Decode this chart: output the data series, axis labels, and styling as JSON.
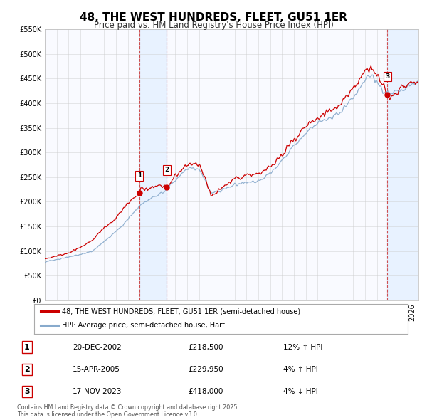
{
  "title": "48, THE WEST HUNDREDS, FLEET, GU51 1ER",
  "subtitle": "Price paid vs. HM Land Registry's House Price Index (HPI)",
  "title_fontsize": 11,
  "subtitle_fontsize": 8.5,
  "background_color": "#ffffff",
  "plot_bg_color": "#ffffff",
  "grid_color": "#cccccc",
  "ylim": [
    0,
    550000
  ],
  "yticks": [
    0,
    50000,
    100000,
    150000,
    200000,
    250000,
    300000,
    350000,
    400000,
    450000,
    500000,
    550000
  ],
  "ytick_labels": [
    "£0",
    "£50K",
    "£100K",
    "£150K",
    "£200K",
    "£250K",
    "£300K",
    "£350K",
    "£400K",
    "£450K",
    "£500K",
    "£550K"
  ],
  "xlim_start": 1995.0,
  "xlim_end": 2026.5,
  "red_line_color": "#cc0000",
  "blue_line_color": "#88aacc",
  "sale_marker_color": "#cc0000",
  "vline_color": "#cc3333",
  "vshade_color": "#ddeeff",
  "legend_label_red": "48, THE WEST HUNDREDS, FLEET, GU51 1ER (semi-detached house)",
  "legend_label_blue": "HPI: Average price, semi-detached house, Hart",
  "sales": [
    {
      "num": 1,
      "date_x": 2002.97,
      "price": 218500,
      "label": "20-DEC-2002",
      "pct": "12%",
      "dir": "↑"
    },
    {
      "num": 2,
      "date_x": 2005.29,
      "price": 229950,
      "label": "15-APR-2005",
      "pct": "4%",
      "dir": "↑"
    },
    {
      "num": 3,
      "date_x": 2023.88,
      "price": 418000,
      "label": "17-NOV-2023",
      "pct": "4%",
      "dir": "↓"
    }
  ],
  "vshade_ranges": [
    [
      2002.97,
      2005.29
    ],
    [
      2023.88,
      2026.5
    ]
  ],
  "footer_text": "Contains HM Land Registry data © Crown copyright and database right 2025.\nThis data is licensed under the Open Government Licence v3.0.",
  "table_rows": [
    {
      "num": 1,
      "date": "20-DEC-2002",
      "price": "£218,500",
      "pct": "12% ↑ HPI"
    },
    {
      "num": 2,
      "date": "15-APR-2005",
      "price": "£229,950",
      "pct": "4% ↑ HPI"
    },
    {
      "num": 3,
      "date": "17-NOV-2023",
      "price": "£418,000",
      "pct": "4% ↓ HPI"
    }
  ]
}
